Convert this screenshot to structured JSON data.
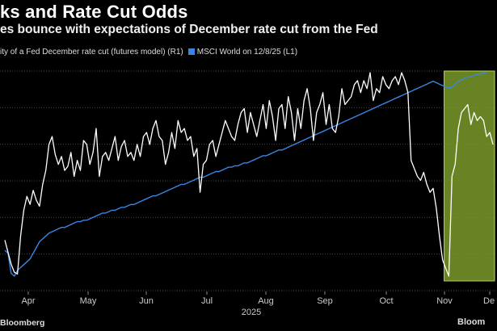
{
  "chart_data": {
    "type": "line",
    "title": "ks and Rate Cut Odds",
    "subtitle": "es bounce with expectations of December rate cut from the Fed",
    "source": "Bloomberg",
    "logo_text": "Bloom",
    "x_year_label": "2025",
    "x_ticks": [
      "Apr",
      "May",
      "Jun",
      "Jul",
      "Aug",
      "Sep",
      "Oct",
      "Nov",
      "De"
    ],
    "grid": true,
    "highlight": {
      "label": "highlighted recent period",
      "color": "#7a9a2a",
      "from_index": 140,
      "to_index": 155
    },
    "series": [
      {
        "name": "ity of a Fed December rate cut (futures model) (R1)",
        "color": "#ffffff",
        "axis": "R1",
        "values": [
          20,
          14,
          8,
          4,
          3,
          22,
          35,
          42,
          38,
          45,
          40,
          37,
          48,
          55,
          68,
          72,
          63,
          58,
          62,
          55,
          57,
          64,
          52,
          60,
          55,
          70,
          68,
          58,
          64,
          76,
          52,
          62,
          64,
          60,
          66,
          72,
          60,
          67,
          70,
          62,
          64,
          60,
          68,
          62,
          72,
          74,
          68,
          76,
          80,
          72,
          70,
          58,
          64,
          74,
          66,
          80,
          74,
          76,
          70,
          72,
          62,
          66,
          44,
          58,
          60,
          68,
          70,
          62,
          68,
          74,
          80,
          76,
          72,
          70,
          78,
          84,
          86,
          74,
          84,
          78,
          72,
          80,
          88,
          76,
          90,
          82,
          70,
          86,
          88,
          76,
          92,
          84,
          70,
          86,
          76,
          90,
          96,
          86,
          70,
          84,
          88,
          94,
          78,
          88,
          76,
          74,
          82,
          96,
          88,
          90,
          92,
          98,
          100,
          94,
          100,
          96,
          104,
          90,
          96,
          94,
          102,
          98,
          96,
          100,
          102,
          98,
          104,
          100,
          94,
          60,
          56,
          52,
          50,
          54,
          48,
          44,
          46,
          36,
          22,
          10,
          6,
          2,
          52,
          58,
          76,
          84,
          86,
          88,
          78,
          84,
          80,
          82,
          80,
          72,
          74,
          68
        ]
      },
      {
        "name": "MSCI World on 12/8/25 (L1)",
        "color": "#3a86e8",
        "axis": "L1",
        "values": [
          42,
          40,
          26,
          24,
          28,
          30,
          32,
          34,
          36,
          40,
          44,
          48,
          50,
          52,
          54,
          55,
          56,
          57,
          58,
          58,
          59,
          60,
          61,
          62,
          62,
          63,
          63,
          64,
          65,
          66,
          67,
          68,
          68,
          69,
          70,
          70,
          71,
          72,
          72,
          73,
          74,
          74,
          75,
          76,
          77,
          78,
          79,
          80,
          80,
          81,
          82,
          83,
          84,
          85,
          86,
          87,
          88,
          88,
          89,
          90,
          91,
          92,
          93,
          93,
          94,
          95,
          96,
          97,
          97,
          98,
          99,
          100,
          100,
          101,
          101,
          102,
          103,
          103,
          104,
          105,
          106,
          107,
          108,
          108,
          109,
          110,
          111,
          112,
          112,
          113,
          114,
          115,
          116,
          117,
          118,
          119,
          120,
          121,
          122,
          123,
          124,
          125,
          126,
          127,
          128,
          129,
          130,
          131,
          132,
          133,
          134,
          135,
          136,
          137,
          138,
          139,
          140,
          141,
          142,
          143,
          144,
          145,
          146,
          147,
          148,
          149,
          150,
          151,
          152,
          153,
          154,
          155,
          156,
          157,
          158,
          159,
          160,
          159,
          158,
          157,
          156,
          155,
          156,
          158,
          160,
          161,
          162,
          163,
          163,
          164,
          165,
          165,
          166,
          166
        ]
      }
    ]
  }
}
